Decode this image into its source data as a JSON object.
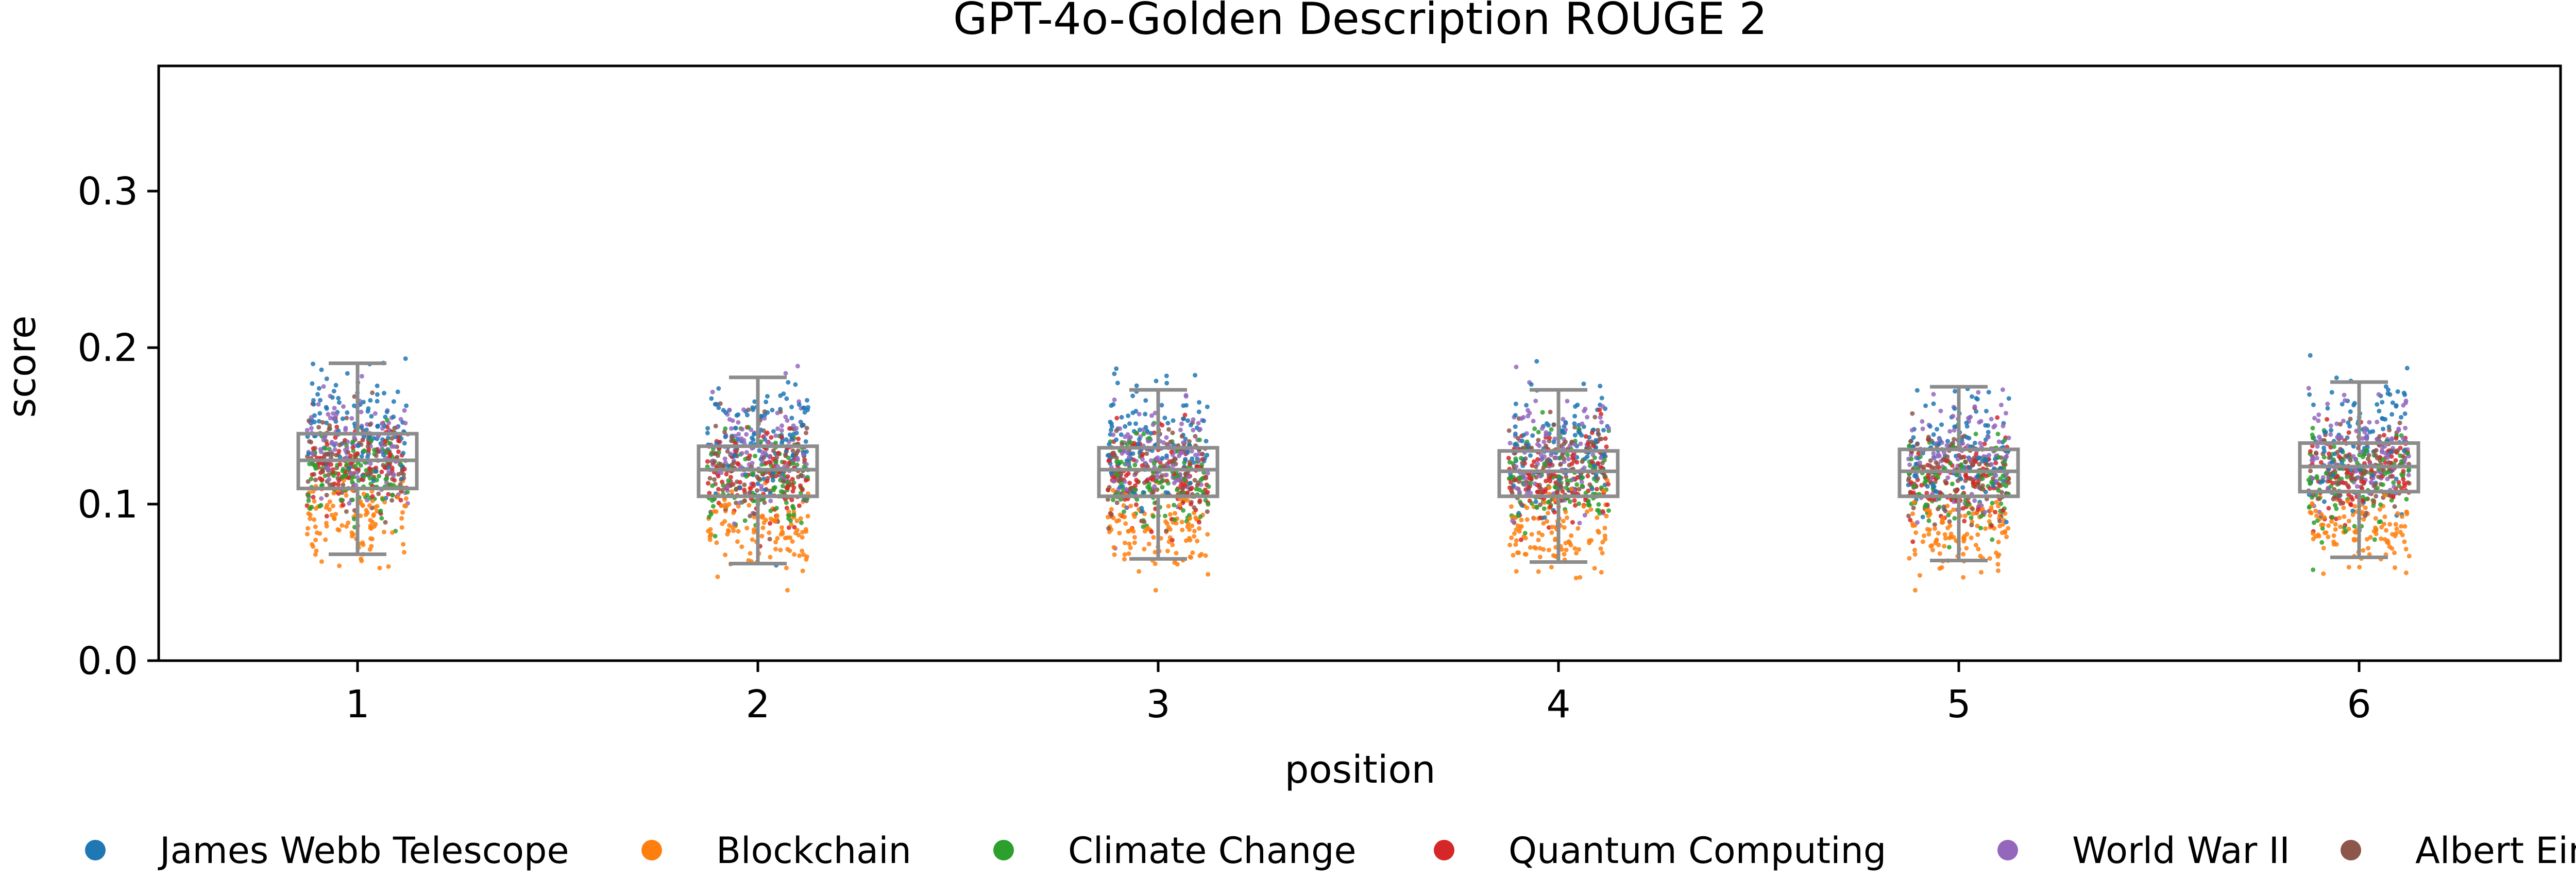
{
  "chart_data": {
    "type": "box+strip",
    "title": "GPT-4o-Golden Description ROUGE 2",
    "xlabel": "position",
    "ylabel": "score",
    "categories": [
      "1",
      "2",
      "3",
      "4",
      "5",
      "6"
    ],
    "ylim": [
      0,
      0.38
    ],
    "yticks": [
      "0.0",
      "0.1",
      "0.2",
      "0.3"
    ],
    "grid": false,
    "legend_position": "bottom",
    "box_color": "#8c8c8c",
    "boxes": [
      {
        "position": "1",
        "whisker_low": 0.068,
        "q1": 0.11,
        "median": 0.128,
        "q3": 0.145,
        "whisker_high": 0.19
      },
      {
        "position": "2",
        "whisker_low": 0.062,
        "q1": 0.105,
        "median": 0.122,
        "q3": 0.137,
        "whisker_high": 0.181
      },
      {
        "position": "3",
        "whisker_low": 0.065,
        "q1": 0.105,
        "median": 0.122,
        "q3": 0.136,
        "whisker_high": 0.173
      },
      {
        "position": "4",
        "whisker_low": 0.063,
        "q1": 0.105,
        "median": 0.121,
        "q3": 0.134,
        "whisker_high": 0.173
      },
      {
        "position": "5",
        "whisker_low": 0.064,
        "q1": 0.105,
        "median": 0.121,
        "q3": 0.135,
        "whisker_high": 0.175
      },
      {
        "position": "6",
        "whisker_low": 0.066,
        "q1": 0.108,
        "median": 0.124,
        "q3": 0.139,
        "whisker_high": 0.178
      }
    ],
    "series": [
      {
        "name": "James Webb Telescope",
        "color": "#1f77b4",
        "center": [
          0.15,
          0.138,
          0.14,
          0.137,
          0.137,
          0.142
        ],
        "spread": 0.02
      },
      {
        "name": "Blockchain",
        "color": "#ff7f0e",
        "center": [
          0.09,
          0.082,
          0.083,
          0.082,
          0.082,
          0.083
        ],
        "spread": 0.012
      },
      {
        "name": "Climate Change",
        "color": "#2ca02c",
        "center": [
          0.12,
          0.115,
          0.113,
          0.113,
          0.113,
          0.115
        ],
        "spread": 0.015
      },
      {
        "name": "Quantum Computing",
        "color": "#d62728",
        "center": [
          0.122,
          0.117,
          0.116,
          0.116,
          0.116,
          0.119
        ],
        "spread": 0.015
      },
      {
        "name": "World War II",
        "color": "#9467bd",
        "center": [
          0.14,
          0.134,
          0.132,
          0.131,
          0.131,
          0.136
        ],
        "spread": 0.017
      },
      {
        "name": "Albert Einstein",
        "color": "#8c564b",
        "center": [
          0.128,
          0.123,
          0.121,
          0.121,
          0.121,
          0.125
        ],
        "spread": 0.015
      }
    ],
    "points_per_series_per_position": 110
  }
}
